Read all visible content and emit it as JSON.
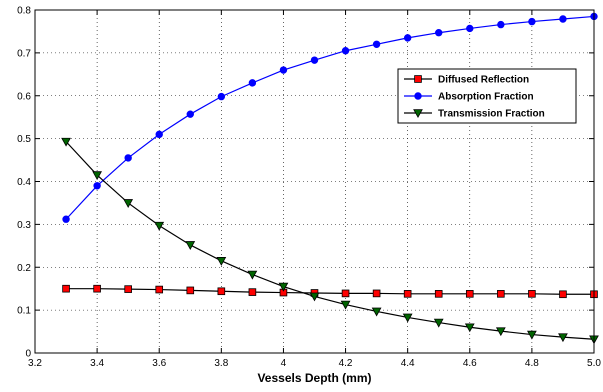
{
  "chart_data": {
    "type": "line",
    "title": "",
    "xlabel": "Vessels Depth (mm)",
    "ylabel": "",
    "xlim": [
      3.2,
      5.0
    ],
    "ylim": [
      0,
      0.8
    ],
    "xticks": [
      "3.2",
      "3.4",
      "3.6",
      "3.8",
      "4",
      "4.2",
      "4.4",
      "4.6",
      "4.8",
      "5.0"
    ],
    "yticks": [
      "0",
      "0.1",
      "0.2",
      "0.3",
      "0.4",
      "0.5",
      "0.6",
      "0.7",
      "0.8"
    ],
    "grid": true,
    "legend_position": "upper-right",
    "x": [
      3.3,
      3.4,
      3.5,
      3.6,
      3.7,
      3.8,
      3.9,
      4.0,
      4.1,
      4.2,
      4.3,
      4.4,
      4.5,
      4.6,
      4.7,
      4.8,
      4.9,
      5.0
    ],
    "series": [
      {
        "name": "Diffused Reflection",
        "marker": "square",
        "color": "#ff0000",
        "line_color": "#000000",
        "values": [
          0.15,
          0.15,
          0.149,
          0.148,
          0.146,
          0.144,
          0.142,
          0.141,
          0.14,
          0.139,
          0.139,
          0.138,
          0.138,
          0.138,
          0.138,
          0.138,
          0.137,
          0.137
        ]
      },
      {
        "name": "Absorption Fraction",
        "marker": "circle",
        "color": "#0000ff",
        "line_color": "#0000ff",
        "values": [
          0.312,
          0.39,
          0.455,
          0.51,
          0.557,
          0.598,
          0.63,
          0.66,
          0.683,
          0.705,
          0.72,
          0.735,
          0.747,
          0.757,
          0.766,
          0.773,
          0.779,
          0.785
        ]
      },
      {
        "name": "Transmission Fraction",
        "marker": "triangle-down",
        "color": "#006400",
        "line_color": "#000000",
        "values": [
          0.493,
          0.415,
          0.35,
          0.297,
          0.252,
          0.215,
          0.183,
          0.155,
          0.132,
          0.113,
          0.097,
          0.083,
          0.071,
          0.06,
          0.051,
          0.043,
          0.037,
          0.032
        ]
      }
    ]
  }
}
